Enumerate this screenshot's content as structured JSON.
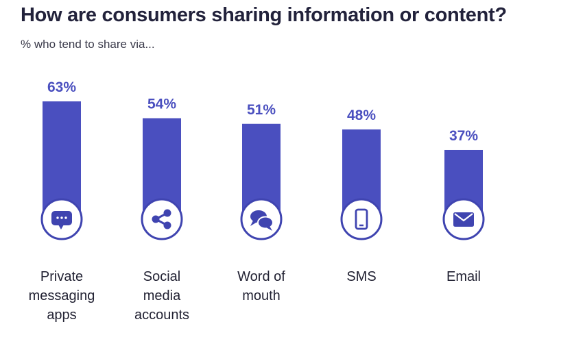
{
  "colors": {
    "bar": "#4a4fbf",
    "icon_ring": "#3f44b0",
    "value_text": "#4a4fbf",
    "title": "#22223b"
  },
  "chart_data": {
    "type": "bar",
    "title": "How are consumers sharing information or content?",
    "subtitle": "% who tend to share via...",
    "categories": [
      [
        "Private",
        "messaging",
        "apps"
      ],
      [
        "Social",
        "media",
        "accounts"
      ],
      [
        "Word of",
        "mouth"
      ],
      [
        "SMS"
      ],
      [
        "Email"
      ]
    ],
    "values": [
      63,
      54,
      51,
      48,
      37
    ],
    "value_labels": [
      "63%",
      "54%",
      "51%",
      "48%",
      "37%"
    ],
    "icons": [
      "chat-bubble-icon",
      "share-icon",
      "speech-bubbles-icon",
      "smartphone-icon",
      "envelope-icon"
    ],
    "ylim": [
      0,
      100
    ],
    "grid": false
  }
}
